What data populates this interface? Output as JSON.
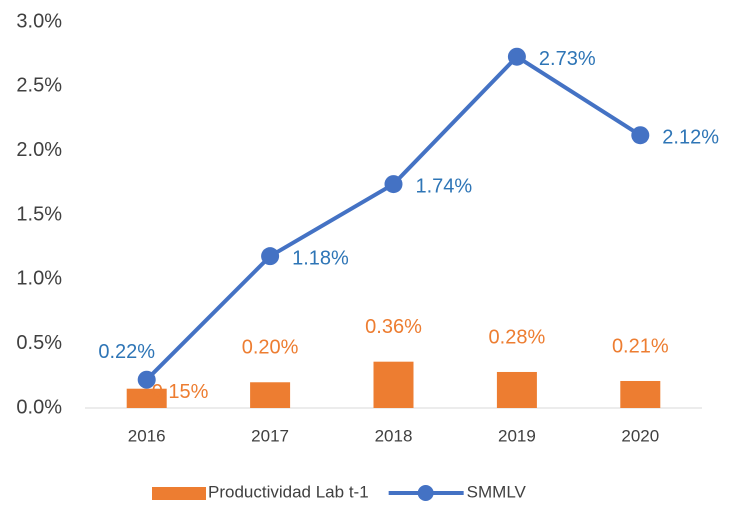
{
  "chart_data": {
    "type": "bar",
    "categories": [
      "2016",
      "2017",
      "2018",
      "2019",
      "2020"
    ],
    "series": [
      {
        "name": "Productividad Lab t-1",
        "type": "bar",
        "color": "#ed7d31",
        "label_color": "#ed7d31",
        "values": [
          0.15,
          0.2,
          0.36,
          0.28,
          0.21
        ],
        "value_labels": [
          "0.15%",
          "0.20%",
          "0.36%",
          "0.28%",
          "0.21%"
        ]
      },
      {
        "name": "SMMLV",
        "type": "line",
        "color": "#4472c4",
        "label_color": "#2e75b6",
        "values": [
          0.22,
          1.18,
          1.74,
          2.73,
          2.12
        ],
        "value_labels": [
          "0.22%",
          "1.18%",
          "1.74%",
          "2.73%",
          "2.12%"
        ]
      }
    ],
    "ylim": [
      0,
      3
    ],
    "yticks": [
      {
        "value": 0,
        "label": "0.0%"
      },
      {
        "value": 0.5,
        "label": "0.5%"
      },
      {
        "value": 1,
        "label": "1.0%"
      },
      {
        "value": 1.5,
        "label": "1.5%"
      },
      {
        "value": 2,
        "label": "2.0%"
      },
      {
        "value": 2.5,
        "label": "2.5%"
      },
      {
        "value": 3,
        "label": "3.0%"
      }
    ],
    "grid": false,
    "legend": "bottom"
  }
}
